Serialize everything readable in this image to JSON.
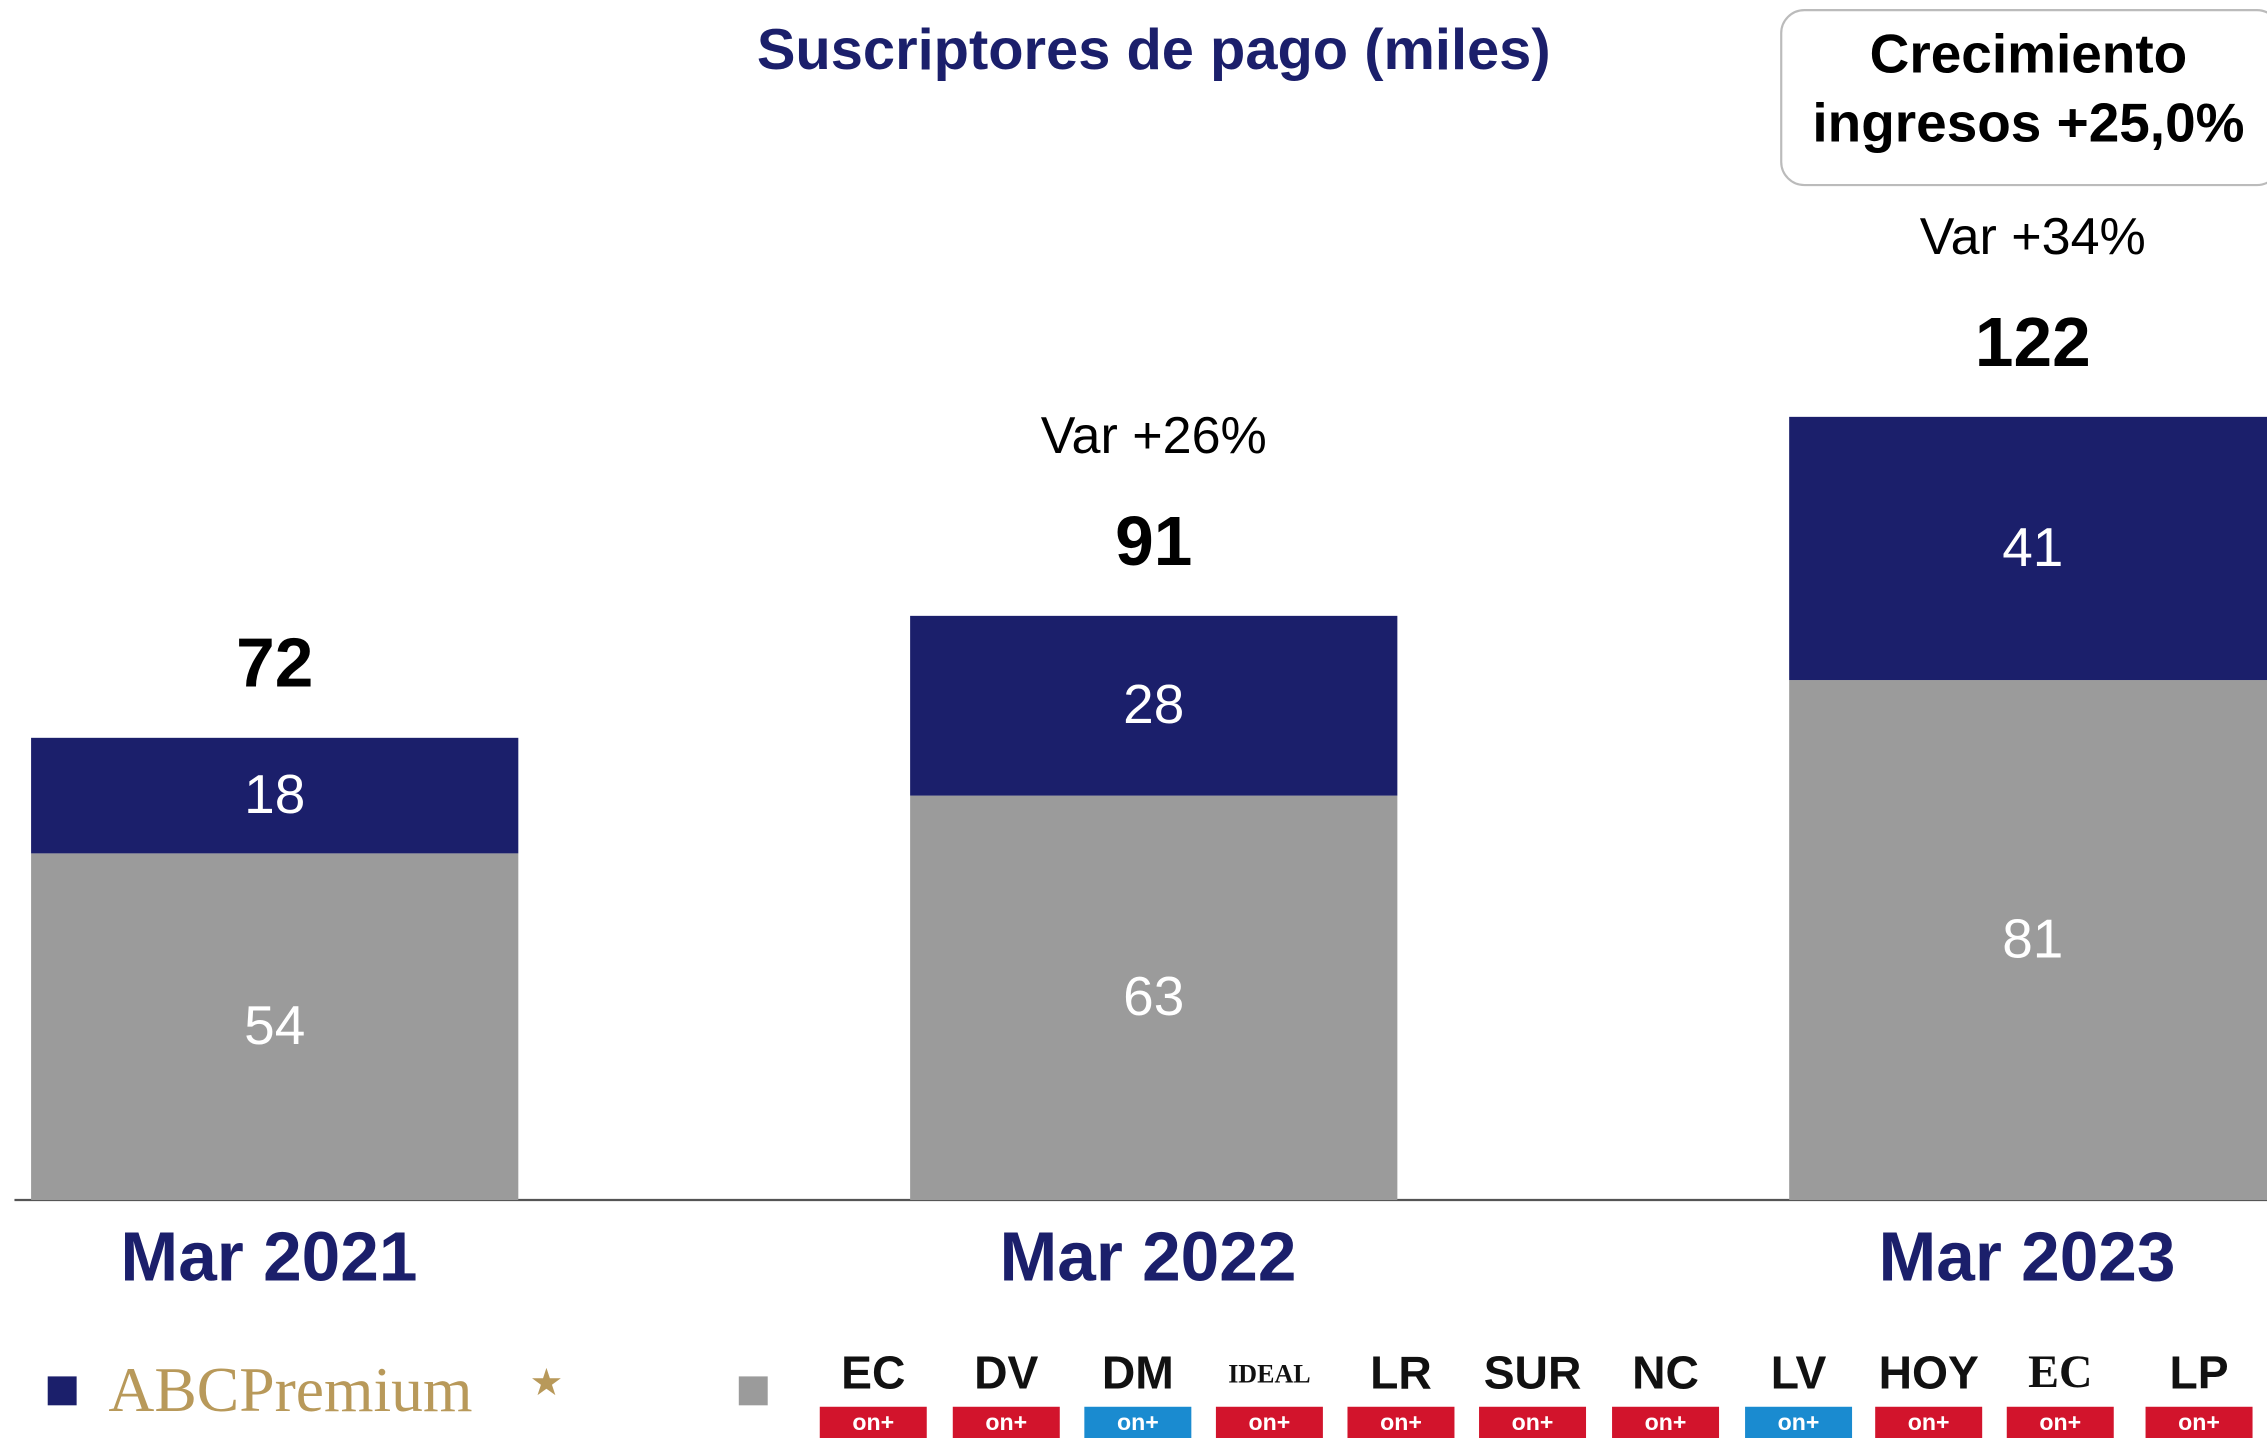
{
  "chart_data": {
    "type": "stacked_bar",
    "title": "Suscriptores de pago (miles)",
    "categories": [
      "Mar 2021",
      "Mar 2022",
      "Mar 2023"
    ],
    "series": [
      {
        "name": "ABCPremium",
        "color": "#1b1f6b",
        "values": [
          18,
          28,
          41
        ]
      },
      {
        "color": "#9b9b9b",
        "values": [
          54,
          63,
          81
        ]
      }
    ],
    "series_order": "bottom_last",
    "totals": [
      72,
      91,
      122
    ],
    "annotations": [
      null,
      "Var +26%",
      "Var +34%"
    ],
    "box": [
      "Crecimiento",
      "ingresos +25,0%"
    ],
    "legend_logos": [
      "EC",
      "DV",
      "DM",
      "IDEAL",
      "LR",
      "SUR",
      "NC",
      "LV",
      "HOY",
      "EC",
      "LP"
    ],
    "legend_logo_colors": [
      "#d2142c",
      "#d2142c",
      "#1a8bd0",
      "#d2142c",
      "#d2142c",
      "#d2142c",
      "#d2142c",
      "#1a8bd0",
      "#d2142c",
      "#d2142c",
      "#d2142c"
    ],
    "legend_tag": "on+"
  }
}
